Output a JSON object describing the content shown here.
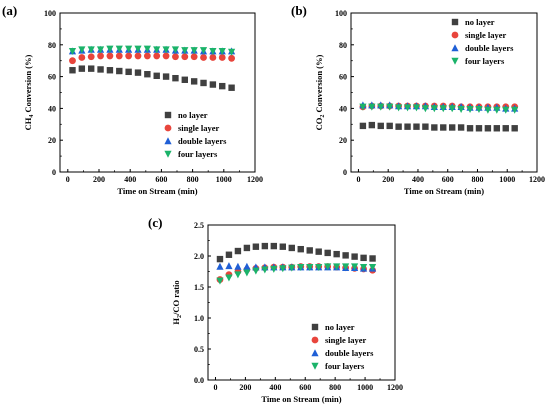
{
  "chart_data": [
    {
      "panel": "(a)",
      "type": "scatter",
      "xlabel": "Time on Stream (min)",
      "ylabel_parts": [
        "CH",
        "4",
        " Conversion (%)"
      ],
      "xlim": [
        -50,
        1200
      ],
      "ylim": [
        0,
        100
      ],
      "xticks": [
        "0",
        "200",
        "400",
        "600",
        "800",
        "1000",
        "1200"
      ],
      "yticks": [
        "0",
        "20",
        "40",
        "60",
        "80",
        "100"
      ],
      "legend_position": "lower-right",
      "series": [
        {
          "name": "no layer",
          "color": "#404040",
          "marker": "square",
          "x": [
            30,
            90,
            150,
            210,
            270,
            330,
            390,
            450,
            510,
            570,
            630,
            690,
            750,
            810,
            870,
            930,
            990,
            1050
          ],
          "y": [
            64,
            65,
            65,
            64.5,
            64,
            63.5,
            63,
            62.5,
            61.5,
            60.5,
            60,
            59,
            58,
            57,
            56,
            55,
            54,
            53
          ]
        },
        {
          "name": "single layer",
          "color": "#e8453c",
          "marker": "circle",
          "x": [
            30,
            90,
            150,
            210,
            270,
            330,
            390,
            450,
            510,
            570,
            630,
            690,
            750,
            810,
            870,
            930,
            990,
            1050
          ],
          "y": [
            70,
            72,
            72.5,
            73,
            73,
            73,
            73,
            73,
            73,
            73,
            73,
            72.5,
            72.5,
            72.5,
            72,
            72,
            72,
            71.5
          ]
        },
        {
          "name": "double layers",
          "color": "#1f5fd6",
          "marker": "triangle-up",
          "x": [
            30,
            90,
            150,
            210,
            270,
            330,
            390,
            450,
            510,
            570,
            630,
            690,
            750,
            810,
            870,
            930,
            990,
            1050
          ],
          "y": [
            76,
            76.5,
            77,
            77,
            77,
            77,
            77,
            77,
            77,
            77,
            77,
            76.5,
            76.5,
            76.5,
            76,
            76,
            76,
            76
          ]
        },
        {
          "name": "four layers",
          "color": "#1bb36a",
          "marker": "triangle-down",
          "x": [
            30,
            90,
            150,
            210,
            270,
            330,
            390,
            450,
            510,
            570,
            630,
            690,
            750,
            810,
            870,
            930,
            990,
            1050
          ],
          "y": [
            76,
            77,
            77,
            77,
            77.5,
            77.5,
            77.5,
            77.5,
            77.5,
            77,
            77,
            77,
            76.5,
            76.5,
            76.5,
            76,
            76,
            75.5
          ]
        }
      ]
    },
    {
      "panel": "(b)",
      "type": "scatter",
      "xlabel": "Time on Stream (min)",
      "ylabel_parts": [
        "CO",
        "2",
        " Conversion (%)"
      ],
      "xlim": [
        -50,
        1200
      ],
      "ylim": [
        0,
        100
      ],
      "xticks": [
        "0",
        "200",
        "400",
        "600",
        "800",
        "1000",
        "1200"
      ],
      "yticks": [
        "0",
        "20",
        "40",
        "60",
        "80",
        "100"
      ],
      "legend_position": "upper-right",
      "series": [
        {
          "name": "no layer",
          "color": "#404040",
          "marker": "square",
          "x": [
            30,
            90,
            150,
            210,
            270,
            330,
            390,
            450,
            510,
            570,
            630,
            690,
            750,
            810,
            870,
            930,
            990,
            1050
          ],
          "y": [
            29,
            29.5,
            29,
            29,
            28.5,
            28.5,
            28.5,
            28.5,
            28,
            28,
            28,
            28,
            27.5,
            27.5,
            27.5,
            27.5,
            27.5,
            27.5
          ]
        },
        {
          "name": "single layer",
          "color": "#e8453c",
          "marker": "circle",
          "x": [
            30,
            90,
            150,
            210,
            270,
            330,
            390,
            450,
            510,
            570,
            630,
            690,
            750,
            810,
            870,
            930,
            990,
            1050
          ],
          "y": [
            41,
            41.5,
            41.5,
            41.5,
            41.5,
            41.5,
            41.5,
            41.5,
            41.5,
            41.5,
            41.5,
            41,
            41,
            41,
            41,
            41,
            41,
            41
          ]
        },
        {
          "name": "double layers",
          "color": "#1f5fd6",
          "marker": "triangle-up",
          "x": [
            30,
            90,
            150,
            210,
            270,
            330,
            390,
            450,
            510,
            570,
            630,
            690,
            750,
            810,
            870,
            930,
            990,
            1050
          ],
          "y": [
            42,
            42,
            42,
            42,
            41.5,
            41.5,
            41.5,
            41.5,
            41,
            41,
            41,
            41,
            40.5,
            40.5,
            40.5,
            40.5,
            40,
            40
          ]
        },
        {
          "name": "four layers",
          "color": "#1bb36a",
          "marker": "triangle-down",
          "x": [
            30,
            90,
            150,
            210,
            270,
            330,
            390,
            450,
            510,
            570,
            630,
            690,
            750,
            810,
            870,
            930,
            990,
            1050
          ],
          "y": [
            41,
            41,
            41,
            41,
            40.5,
            40.5,
            40.5,
            40,
            40,
            40,
            40,
            39.5,
            39.5,
            39.5,
            39,
            39,
            39,
            39
          ]
        }
      ]
    },
    {
      "panel": "(c)",
      "type": "scatter",
      "xlabel": "Time on Stream (min)",
      "ylabel_parts": [
        "H",
        "2",
        "/CO ratio"
      ],
      "xlim": [
        -50,
        1200
      ],
      "ylim": [
        0.0,
        2.5
      ],
      "xticks": [
        "0",
        "200",
        "400",
        "600",
        "800",
        "1000",
        "1200"
      ],
      "yticks": [
        "0.0",
        "0.5",
        "1.0",
        "1.5",
        "2.0",
        "2.5"
      ],
      "legend_position": "lower-right",
      "series": [
        {
          "name": "no layer",
          "color": "#404040",
          "marker": "square",
          "x": [
            30,
            90,
            150,
            210,
            270,
            330,
            390,
            450,
            510,
            570,
            630,
            690,
            750,
            810,
            870,
            930,
            990,
            1050
          ],
          "y": [
            1.95,
            2.02,
            2.08,
            2.13,
            2.15,
            2.16,
            2.16,
            2.15,
            2.13,
            2.11,
            2.09,
            2.07,
            2.05,
            2.03,
            2.01,
            1.99,
            1.97,
            1.96
          ]
        },
        {
          "name": "single layer",
          "color": "#e8453c",
          "marker": "circle",
          "x": [
            30,
            90,
            150,
            210,
            270,
            330,
            390,
            450,
            510,
            570,
            630,
            690,
            750,
            810,
            870,
            930,
            990,
            1050
          ],
          "y": [
            1.62,
            1.7,
            1.75,
            1.78,
            1.8,
            1.81,
            1.82,
            1.82,
            1.82,
            1.83,
            1.83,
            1.83,
            1.83,
            1.82,
            1.81,
            1.8,
            1.79,
            1.77
          ]
        },
        {
          "name": "double layers",
          "color": "#1f5fd6",
          "marker": "triangle-up",
          "x": [
            30,
            90,
            150,
            210,
            270,
            330,
            390,
            450,
            510,
            570,
            630,
            690,
            750,
            810,
            870,
            930,
            990,
            1050
          ],
          "y": [
            1.83,
            1.84,
            1.83,
            1.83,
            1.82,
            1.82,
            1.82,
            1.82,
            1.82,
            1.82,
            1.82,
            1.82,
            1.82,
            1.82,
            1.81,
            1.81,
            1.8,
            1.8
          ]
        },
        {
          "name": "four layers",
          "color": "#1bb36a",
          "marker": "triangle-down",
          "x": [
            30,
            90,
            150,
            210,
            270,
            330,
            390,
            450,
            510,
            570,
            630,
            690,
            750,
            810,
            870,
            930,
            990,
            1050
          ],
          "y": [
            1.6,
            1.65,
            1.7,
            1.73,
            1.76,
            1.78,
            1.79,
            1.8,
            1.81,
            1.82,
            1.82,
            1.82,
            1.83,
            1.83,
            1.83,
            1.83,
            1.82,
            1.82
          ]
        }
      ]
    }
  ]
}
